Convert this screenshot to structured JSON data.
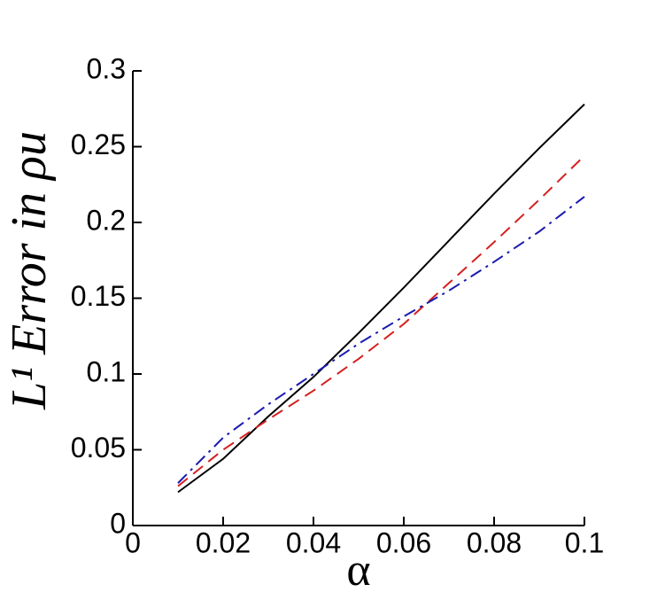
{
  "chart_data": {
    "type": "line",
    "xlabel": "α",
    "ylabel": "L¹ Error in ρu",
    "x": [
      0.01,
      0.02,
      0.03,
      0.04,
      0.05,
      0.06,
      0.07,
      0.08,
      0.09,
      0.1
    ],
    "series": [
      {
        "color": "#000000",
        "dash": "solid",
        "values": [
          0.022,
          0.044,
          0.072,
          0.098,
          0.127,
          0.157,
          0.188,
          0.219,
          0.249,
          0.278
        ]
      },
      {
        "color": "#d42020",
        "dash": "dashed",
        "values": [
          0.026,
          0.05,
          0.07,
          0.089,
          0.11,
          0.133,
          0.16,
          0.187,
          0.215,
          0.244
        ]
      },
      {
        "color": "#1a1ab0",
        "dash": "dashdot",
        "values": [
          0.028,
          0.058,
          0.08,
          0.1,
          0.12,
          0.138,
          0.155,
          0.174,
          0.194,
          0.217
        ]
      }
    ],
    "xlim": [
      0,
      0.1
    ],
    "xticks": [
      0,
      0.02,
      0.04,
      0.06,
      0.08,
      0.1
    ],
    "ylim": [
      0,
      0.3
    ],
    "yticks": [
      0,
      0.05,
      0.1,
      0.15,
      0.2,
      0.25,
      0.3
    ],
    "grid": false
  }
}
